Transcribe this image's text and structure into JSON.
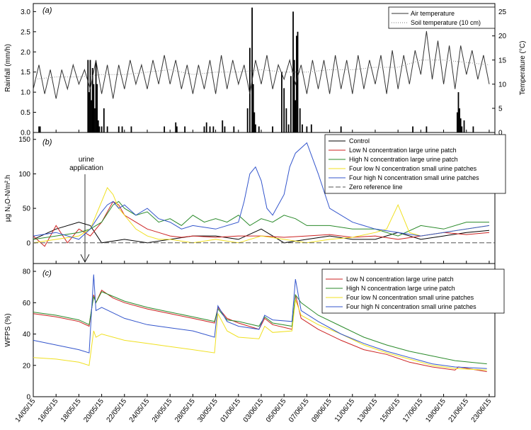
{
  "figure": {
    "x_dates": [
      "14/05/15",
      "16/05/15",
      "18/05/15",
      "20/05/15",
      "22/05/15",
      "24/05/15",
      "26/05/15",
      "28/05/15",
      "30/05/15",
      "01/06/15",
      "03/06/15",
      "05/06/15",
      "07/06/15",
      "09/06/15",
      "11/06/15",
      "13/06/15",
      "15/06/15",
      "17/06/15",
      "19/06/15",
      "21/06/15",
      "23/06/15"
    ]
  },
  "chart_data": [
    {
      "type": "bar+line",
      "panel_label": "(a)",
      "ylabel": "Rainfall (mm/h)",
      "y2label": "Temperature (°C)",
      "ylim": [
        0,
        3.2
      ],
      "yticks": [
        "0.0",
        "0.5",
        "1.0",
        "1.5",
        "2.0",
        "2.5",
        "3.0"
      ],
      "y2lim": [
        0,
        26.7
      ],
      "y2ticks": [
        "0",
        "5",
        "10",
        "15",
        "20",
        "25"
      ],
      "xlim_days": [
        0,
        40.5
      ],
      "legend": [
        {
          "label": "Air temperature",
          "color": "#333333",
          "dash": "solid"
        },
        {
          "label": "Soil temperature (10 cm)",
          "color": "#777777",
          "dash": "dotted"
        }
      ],
      "rainfall": {
        "x_day": [
          0.5,
          0.6,
          4.8,
          4.9,
          5.0,
          5.1,
          5.2,
          5.3,
          5.4,
          5.5,
          5.6,
          5.7,
          5.8,
          6.0,
          6.2,
          6.5,
          7.5,
          7.8,
          8.6,
          11.5,
          12.5,
          12.6,
          13.3,
          15.0,
          15.2,
          15.5,
          15.8,
          16.6,
          16.8,
          17.6,
          18.8,
          19.0,
          19.2,
          19.3,
          19.4,
          19.5,
          19.8,
          21.0,
          21.8,
          22.0,
          22.2,
          22.4,
          22.6,
          22.8,
          22.9,
          23.0,
          23.1,
          23.2,
          23.4,
          23.6,
          24.0,
          24.4,
          27.0,
          33.3,
          34.5,
          37.2,
          37.3,
          37.4,
          37.5,
          37.6,
          37.8,
          38.6
        ],
        "mm_h": [
          0.15,
          0.15,
          1.8,
          1.0,
          1.8,
          0.8,
          1.6,
          1.2,
          0.6,
          1.75,
          1.2,
          0.3,
          0.15,
          0.15,
          0.6,
          0.15,
          0.15,
          0.15,
          0.15,
          0.15,
          0.25,
          0.15,
          0.15,
          0.15,
          0.25,
          0.15,
          0.15,
          0.3,
          0.15,
          0.15,
          0.6,
          2.1,
          3.1,
          1.2,
          0.5,
          0.2,
          0.15,
          0.15,
          1.5,
          1.1,
          0.6,
          0.2,
          1.4,
          3.0,
          1.8,
          0.8,
          2.4,
          2.5,
          0.6,
          0.2,
          0.15,
          0.2,
          0.15,
          0.15,
          0.15,
          0.5,
          1.0,
          0.6,
          0.35,
          0.15,
          0.3,
          0.15
        ]
      },
      "air_temperature": {
        "x_day": [
          0,
          0.5,
          1,
          1.5,
          2,
          2.5,
          3,
          3.5,
          4,
          4.5,
          5,
          5.5,
          6,
          6.5,
          7,
          7.5,
          8,
          8.5,
          9,
          9.5,
          10,
          10.5,
          11,
          11.5,
          12,
          12.5,
          13,
          13.5,
          14,
          14.5,
          15,
          15.5,
          16,
          16.5,
          17,
          17.5,
          18,
          18.5,
          19,
          19.5,
          20,
          20.5,
          21,
          21.5,
          22,
          22.5,
          23,
          23.5,
          24,
          24.5,
          25,
          25.5,
          26,
          26.5,
          27,
          27.5,
          28,
          28.5,
          29,
          29.5,
          30,
          30.5,
          31,
          31.5,
          32,
          32.5,
          33,
          33.5,
          34,
          34.5,
          35,
          35.5,
          36,
          36.5,
          37,
          37.5,
          38,
          38.5,
          39,
          39.5,
          40
        ],
        "celsius": [
          9,
          14,
          8,
          13,
          7,
          13,
          9,
          14,
          10,
          13,
          9,
          15,
          8,
          14,
          7,
          14,
          9,
          15,
          10,
          14,
          9,
          15,
          10,
          16,
          10,
          15,
          9,
          14,
          8,
          14,
          9,
          15,
          8,
          16,
          9,
          15,
          10,
          14,
          8,
          15,
          10,
          16,
          9,
          14,
          11,
          15,
          10,
          14,
          8,
          15,
          9,
          15,
          8,
          16,
          9,
          15,
          8,
          16,
          9,
          15,
          10,
          16,
          8,
          17,
          9,
          16,
          10,
          17,
          12,
          21,
          11,
          19,
          10,
          18,
          9,
          18,
          12,
          17,
          11,
          16,
          10
        ]
      },
      "soil_temperature": {
        "x_day": [
          0,
          2,
          4,
          6,
          8,
          10,
          12,
          14,
          16,
          18,
          20,
          22,
          24,
          26,
          28,
          30,
          32,
          34,
          36,
          38,
          40
        ],
        "celsius": [
          11,
          11.5,
          11.5,
          12,
          12,
          12.5,
          13,
          12,
          12.5,
          12.5,
          13,
          12.5,
          12.5,
          13,
          13,
          13.5,
          13.5,
          15,
          15,
          14.5,
          14
        ]
      }
    },
    {
      "type": "line",
      "panel_label": "(b)",
      "ylabel": "µg N₂O-N/m².h",
      "ylim": [
        -30,
        160
      ],
      "yticks": [
        "0",
        "50",
        "100",
        "150"
      ],
      "xlim_days": [
        0,
        40.5
      ],
      "annotation": {
        "text_line1": "urine",
        "text_line2": "application",
        "x_day": 6.5
      },
      "legend_position": "top-right",
      "series": [
        {
          "name": "Control",
          "color": "#000000",
          "dash": "solid",
          "x_day": [
            0,
            2,
            4,
            5,
            6,
            8,
            10,
            12,
            14,
            16,
            18,
            20,
            22,
            24,
            26,
            28,
            30,
            32,
            34,
            36,
            38,
            40
          ],
          "values": [
            5,
            20,
            30,
            25,
            0,
            5,
            0,
            5,
            10,
            10,
            5,
            20,
            0,
            5,
            10,
            5,
            5,
            15,
            5,
            10,
            15,
            18
          ]
        },
        {
          "name": "Low N concentration large urine patch",
          "color": "#cc2222",
          "dash": "solid",
          "x_day": [
            0,
            1,
            2,
            3,
            4,
            5,
            6,
            7,
            7.5,
            8,
            9,
            10,
            11,
            12,
            13,
            14,
            16,
            18,
            20,
            22,
            24,
            26,
            28,
            30,
            32,
            34,
            36,
            38,
            40
          ],
          "values": [
            10,
            -5,
            25,
            0,
            20,
            10,
            30,
            60,
            55,
            40,
            30,
            20,
            15,
            10,
            8,
            10,
            8,
            10,
            10,
            8,
            10,
            12,
            8,
            10,
            5,
            10,
            15,
            12,
            15
          ]
        },
        {
          "name": "High N concentration large urine patch",
          "color": "#2a8a2a",
          "dash": "solid",
          "x_day": [
            0,
            2,
            4,
            5,
            6,
            7,
            7.5,
            8,
            9,
            10,
            11,
            12,
            13,
            14,
            15,
            16,
            17,
            18,
            19,
            20,
            21,
            22,
            23,
            24,
            26,
            28,
            30,
            32,
            34,
            36,
            38,
            40
          ],
          "values": [
            5,
            10,
            15,
            20,
            30,
            55,
            60,
            50,
            40,
            45,
            30,
            35,
            25,
            40,
            30,
            35,
            30,
            40,
            25,
            35,
            30,
            40,
            35,
            25,
            25,
            20,
            20,
            10,
            25,
            20,
            30,
            30
          ]
        },
        {
          "name": "Four low N concentration small urine patches",
          "color": "#f0e020",
          "dash": "solid",
          "x_day": [
            0,
            2,
            4,
            5,
            6,
            6.5,
            7,
            7.5,
            8,
            9,
            10,
            11,
            12,
            14,
            16,
            18,
            20,
            22,
            24,
            26,
            28,
            30,
            31,
            32,
            33,
            34,
            36,
            38,
            40
          ],
          "values": [
            0,
            5,
            10,
            20,
            60,
            80,
            70,
            50,
            40,
            20,
            10,
            5,
            5,
            0,
            5,
            0,
            10,
            5,
            0,
            5,
            8,
            15,
            20,
            55,
            15,
            10,
            15,
            20,
            25
          ]
        },
        {
          "name": "Four high N concentration small urine patches",
          "color": "#3355cc",
          "dash": "solid",
          "x_day": [
            0,
            2,
            4,
            5,
            6,
            6.5,
            7,
            7.5,
            8,
            9,
            10,
            11,
            12,
            13,
            14,
            16,
            18,
            18.5,
            19,
            19.5,
            20,
            20.5,
            21,
            22,
            22.5,
            23,
            24,
            25,
            26,
            28,
            30,
            32,
            34,
            36,
            38,
            40
          ],
          "values": [
            10,
            15,
            5,
            20,
            45,
            55,
            60,
            50,
            55,
            40,
            50,
            35,
            30,
            20,
            25,
            20,
            30,
            60,
            100,
            110,
            90,
            50,
            40,
            70,
            110,
            130,
            145,
            100,
            50,
            30,
            20,
            15,
            10,
            15,
            20,
            25
          ]
        },
        {
          "name": "Zero reference line",
          "color": "#555555",
          "dash": "dashed",
          "x_day": [
            0,
            40.5
          ],
          "values": [
            0,
            0
          ]
        }
      ]
    },
    {
      "type": "line",
      "panel_label": "(c)",
      "ylabel": "WFPS (%)",
      "ylim": [
        0,
        85
      ],
      "yticks": [
        "0",
        "20",
        "40",
        "60",
        "80"
      ],
      "xlim_days": [
        0,
        40.5
      ],
      "legend_position": "top-right",
      "series": [
        {
          "name": "Low N concentration large urine patch",
          "color": "#cc2222",
          "dash": "solid",
          "x_day": [
            0,
            2,
            4,
            4.9,
            5.3,
            5.5,
            6,
            7,
            8,
            10,
            12,
            14,
            15.9,
            16.2,
            17,
            18,
            19.8,
            20.3,
            21,
            22.7,
            23,
            23.5,
            25,
            27,
            29,
            31,
            33,
            35,
            37,
            37.3,
            39.8
          ],
          "values": [
            53,
            51,
            48,
            45,
            65,
            60,
            68,
            63,
            60,
            56,
            53,
            50,
            47,
            57,
            50,
            47,
            43,
            50,
            46,
            43,
            65,
            50,
            43,
            36,
            30,
            27,
            22,
            19,
            17,
            19,
            16
          ]
        },
        {
          "name": "High N concentration large urine patch",
          "color": "#2a8a2a",
          "dash": "solid",
          "x_day": [
            0,
            2,
            4,
            4.9,
            5.3,
            5.5,
            6,
            7,
            8,
            10,
            12,
            14,
            15.9,
            16.2,
            17,
            18,
            19.8,
            20.3,
            21,
            22.7,
            23,
            23.5,
            25,
            27,
            29,
            31,
            33,
            35,
            37,
            39.8
          ],
          "values": [
            54,
            52,
            49,
            46,
            64,
            60,
            67,
            64,
            61,
            57,
            54,
            51,
            48,
            56,
            49,
            48,
            45,
            51,
            47,
            45,
            65,
            60,
            52,
            45,
            38,
            33,
            29,
            26,
            23,
            21
          ]
        },
        {
          "name": "Four low N concentration small urine patches",
          "color": "#f0e020",
          "dash": "solid",
          "x_day": [
            0,
            2,
            4,
            4.9,
            5.3,
            5.5,
            6,
            8,
            10,
            12,
            14,
            15.9,
            16.2,
            17,
            18,
            19.8,
            20.3,
            21,
            22.7,
            23,
            23.5,
            25,
            27,
            29,
            31,
            33,
            35,
            37,
            39.8
          ],
          "values": [
            25,
            24,
            22,
            20,
            42,
            38,
            40,
            36,
            34,
            32,
            30,
            28,
            53,
            42,
            38,
            37,
            45,
            41,
            42,
            62,
            52,
            46,
            40,
            33,
            28,
            24,
            20,
            18,
            17
          ]
        },
        {
          "name": "Four high N concentration small urine patches",
          "color": "#3355cc",
          "dash": "solid",
          "x_day": [
            0,
            2,
            4,
            4.9,
            5.3,
            5.5,
            6,
            8,
            10,
            12,
            14,
            15.9,
            16.2,
            17,
            18,
            19.8,
            20.3,
            21,
            22.7,
            23,
            23.5,
            25,
            27,
            29,
            31,
            33,
            35,
            37,
            39.8
          ],
          "values": [
            36,
            33,
            30,
            28,
            78,
            55,
            57,
            50,
            46,
            44,
            42,
            38,
            58,
            48,
            45,
            43,
            52,
            49,
            48,
            75,
            55,
            48,
            40,
            34,
            29,
            25,
            21,
            19,
            18
          ]
        }
      ]
    }
  ]
}
